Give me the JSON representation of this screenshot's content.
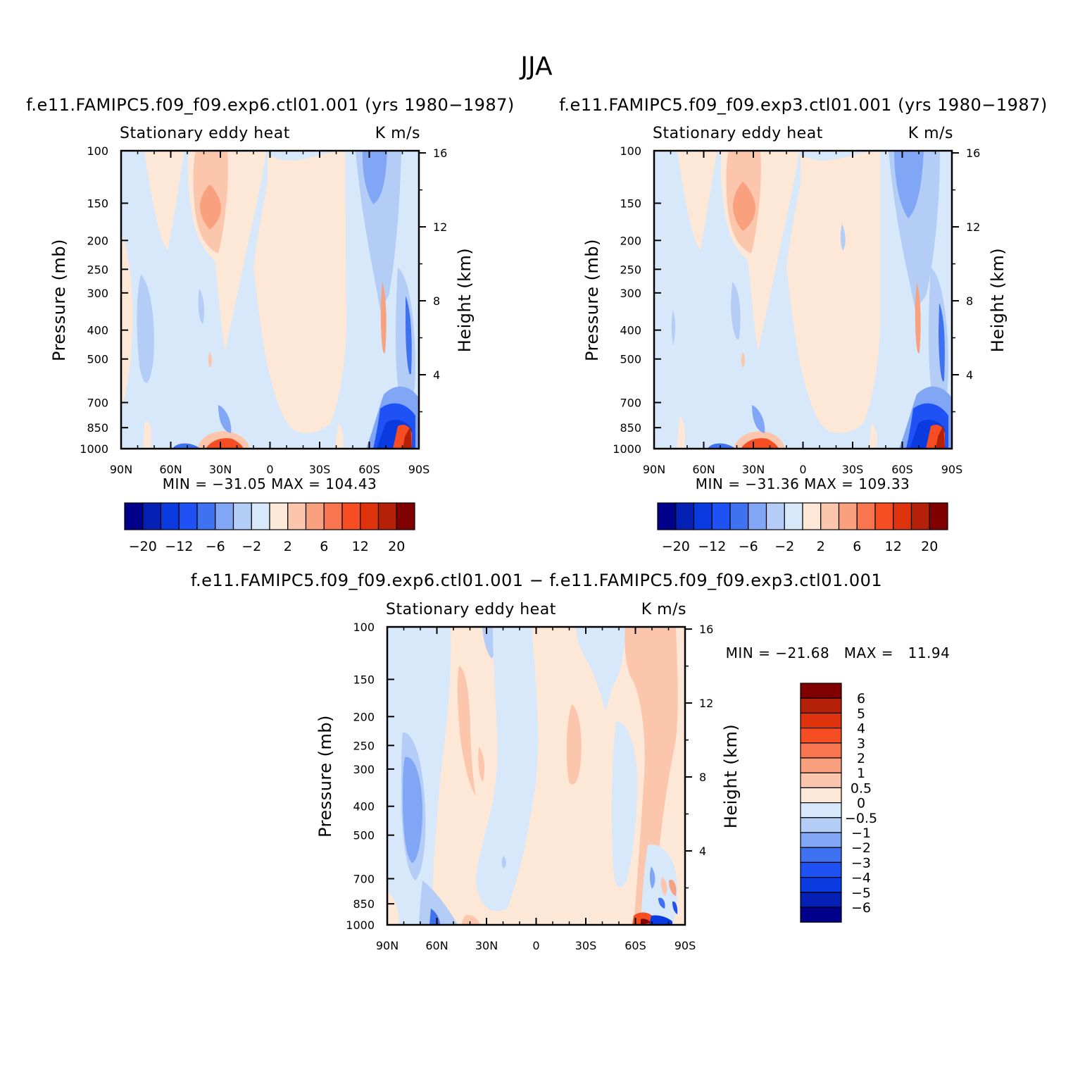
{
  "figure": {
    "title": "JJA",
    "variable": "Stationary eddy heat",
    "units": "K m/s",
    "y_left_label": "Pressure (mb)",
    "y_right_label": "Height (km)",
    "pressure_ticks": [
      "100",
      "150",
      "200",
      "250",
      "300",
      "400",
      "500",
      "700",
      "850",
      "1000"
    ],
    "height_ticks": [
      "16",
      "12",
      "8",
      "4"
    ],
    "lat_ticks": [
      "90N",
      "60N",
      "30N",
      "0",
      "30S",
      "60S",
      "90S"
    ]
  },
  "panels": [
    {
      "title": "f.e11.FAMIPC5.f09_f09.exp6.ctl01.001 (yrs 1980−1987)",
      "stats": "MIN = −31.05   MAX = 104.43"
    },
    {
      "title": "f.e11.FAMIPC5.f09_f09.exp3.ctl01.001 (yrs 1980−1987)",
      "stats": "MIN = −31.36   MAX = 109.33"
    },
    {
      "title": "f.e11.FAMIPC5.f09_f09.exp6.ctl01.001 − f.e11.FAMIPC5.f09_f09.exp3.ctl01.001",
      "stats": "MIN = −21.68   MAX =   11.94"
    }
  ],
  "colorbar_top": {
    "colors": [
      "#00008b",
      "#0520b4",
      "#0a3be0",
      "#1e52f5",
      "#3f72f0",
      "#80a6f5",
      "#b3cdf7",
      "#d7e8fa",
      "#fde8d8",
      "#fcc6ad",
      "#f9a07f",
      "#f87550",
      "#f64e22",
      "#de330c",
      "#b52008",
      "#800000"
    ],
    "labels": [
      "−20",
      "−12",
      "−6",
      "−2",
      "2",
      "6",
      "12",
      "20"
    ]
  },
  "colorbar_diff": {
    "colors": [
      "#00008b",
      "#0520b4",
      "#0a3be0",
      "#1e52f5",
      "#3f72f0",
      "#80a6f5",
      "#b3cdf7",
      "#d7e8fa",
      "#fde8d8",
      "#fcc6ad",
      "#f9a07f",
      "#f87550",
      "#f64e22",
      "#de330c",
      "#b52008",
      "#800000"
    ],
    "labels": [
      "6",
      "5",
      "4",
      "3",
      "2",
      "1",
      "0.5",
      "0",
      "−0.5",
      "−1",
      "−2",
      "−3",
      "−4",
      "−5",
      "−6"
    ]
  },
  "chart_data": [
    {
      "type": "heatmap",
      "title": "f.e11.FAMIPC5.f09_f09.exp6.ctl01.001 (yrs 1980−1987)",
      "subtitle": "Stationary eddy heat",
      "units": "K m/s",
      "x": [
        "90N",
        "60N",
        "30N",
        "0",
        "30S",
        "60S",
        "90S"
      ],
      "y": [
        100,
        150,
        200,
        250,
        300,
        400,
        500,
        700,
        850,
        1000
      ],
      "ylabel": "Pressure (mb)",
      "ylabel_right": "Height (km)",
      "min": -31.05,
      "max": 104.43,
      "levels": [
        -20,
        -16,
        -12,
        -8,
        -6,
        -4,
        -2,
        -1,
        1,
        2,
        4,
        6,
        8,
        12,
        16,
        20
      ]
    },
    {
      "type": "heatmap",
      "title": "f.e11.FAMIPC5.f09_f09.exp3.ctl01.001 (yrs 1980−1987)",
      "subtitle": "Stationary eddy heat",
      "units": "K m/s",
      "x": [
        "90N",
        "60N",
        "30N",
        "0",
        "30S",
        "60S",
        "90S"
      ],
      "y": [
        100,
        150,
        200,
        250,
        300,
        400,
        500,
        700,
        850,
        1000
      ],
      "ylabel": "Pressure (mb)",
      "ylabel_right": "Height (km)",
      "min": -31.36,
      "max": 109.33,
      "levels": [
        -20,
        -16,
        -12,
        -8,
        -6,
        -4,
        -2,
        -1,
        1,
        2,
        4,
        6,
        8,
        12,
        16,
        20
      ]
    },
    {
      "type": "heatmap",
      "title": "f.e11.FAMIPC5.f09_f09.exp6.ctl01.001 − f.e11.FAMIPC5.f09_f09.exp3.ctl01.001",
      "subtitle": "Stationary eddy heat",
      "units": "K m/s",
      "x": [
        "90N",
        "60N",
        "30N",
        "0",
        "30S",
        "60S",
        "90S"
      ],
      "y": [
        100,
        150,
        200,
        250,
        300,
        400,
        500,
        700,
        850,
        1000
      ],
      "ylabel": "Pressure (mb)",
      "ylabel_right": "Height (km)",
      "min": -21.68,
      "max": 11.94,
      "levels": [
        -6,
        -5,
        -4,
        -3,
        -2,
        -1,
        -0.5,
        0,
        0.5,
        1,
        2,
        3,
        4,
        5,
        6
      ]
    }
  ]
}
